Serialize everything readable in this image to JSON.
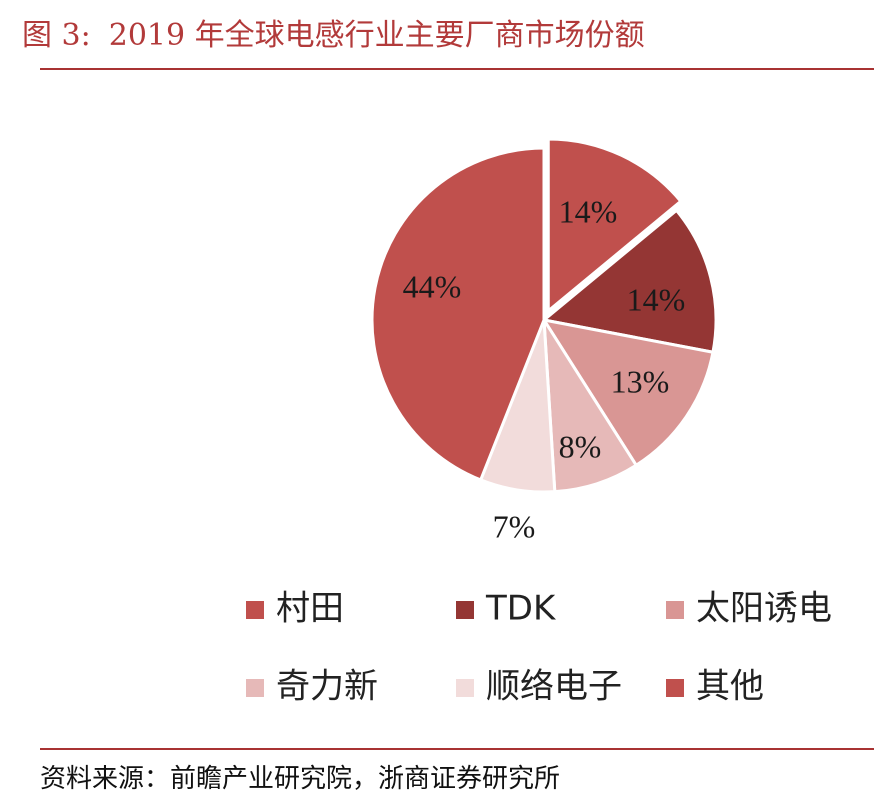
{
  "figure": {
    "label": "图 3:",
    "title": "2019 年全球电感行业主要厂商市场份额"
  },
  "source": "资料来源：前瞻产业研究院，浙商证券研究所",
  "chart_data": {
    "type": "pie",
    "title": "",
    "legend_position": "bottom",
    "slices": [
      {
        "name": "村田",
        "value": 14,
        "label": "14%",
        "color": "#c0504d",
        "exploded": true
      },
      {
        "name": "TDK",
        "value": 14,
        "label": "14%",
        "color": "#943634",
        "exploded": false
      },
      {
        "name": "太阳诱电",
        "value": 13,
        "label": "13%",
        "color": "#d99694",
        "exploded": false
      },
      {
        "name": "奇力新",
        "value": 8,
        "label": "8%",
        "color": "#e6b9b8",
        "exploded": false
      },
      {
        "name": "顺络电子",
        "value": 7,
        "label": "7%",
        "color": "#f2dcdb",
        "exploded": false
      },
      {
        "name": "其他",
        "value": 44,
        "label": "44%",
        "color": "#c0504d",
        "exploded": false
      }
    ]
  }
}
